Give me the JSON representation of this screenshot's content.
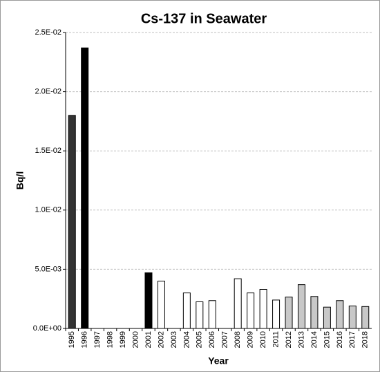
{
  "chart_data": {
    "type": "bar",
    "title": "Cs-137 in Seawater",
    "x_label": "Year",
    "y_label": "Bq/l",
    "categories": [
      "1995",
      "1996",
      "1997",
      "1998",
      "1999",
      "2000",
      "2001",
      "2002",
      "2003",
      "2004",
      "2005",
      "2006",
      "2007",
      "2008",
      "2009",
      "2010",
      "2011",
      "2012",
      "2013",
      "2014",
      "2015",
      "2016",
      "2017",
      "2018"
    ],
    "values": [
      0.018,
      0.0237,
      null,
      null,
      null,
      null,
      0.0047,
      0.004,
      null,
      0.003,
      0.00225,
      0.00235,
      null,
      0.0042,
      0.003,
      0.0033,
      0.0024,
      0.00265,
      0.0037,
      0.0027,
      0.0018,
      0.00235,
      0.0019,
      0.00185
    ],
    "colors": [
      "#333333",
      "#000000",
      null,
      null,
      null,
      null,
      "#000000",
      "#ffffff",
      null,
      "#ffffff",
      "#ffffff",
      "#ffffff",
      null,
      "#ffffff",
      "#ffffff",
      "#ffffff",
      "#ffffff",
      "#c8c8c8",
      "#c8c8c8",
      "#c8c8c8",
      "#c8c8c8",
      "#c8c8c8",
      "#c8c8c8",
      "#c8c8c8"
    ],
    "ylim": [
      0,
      0.025
    ],
    "yticks": [
      {
        "value": 0,
        "label": "0.0E+00"
      },
      {
        "value": 0.005,
        "label": "5.0E-03"
      },
      {
        "value": 0.01,
        "label": "1.0E-02"
      },
      {
        "value": 0.015,
        "label": "1.5E-02"
      },
      {
        "value": 0.02,
        "label": "2.0E-02"
      },
      {
        "value": 0.025,
        "label": "2.5E-02"
      }
    ],
    "grid": true
  }
}
